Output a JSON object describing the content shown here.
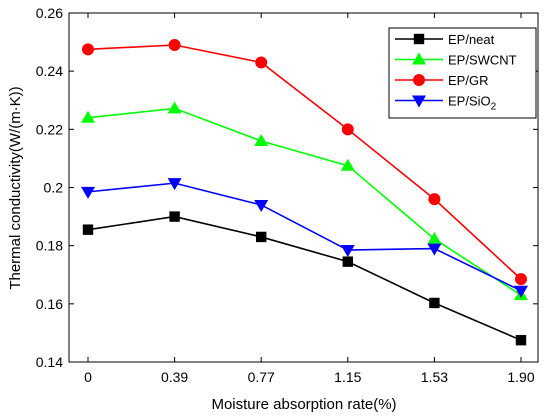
{
  "chart_data": {
    "type": "line",
    "title": "",
    "xlabel": "Moisture absorption rate(%)",
    "ylabel": "Thermal conductivity(W/(m·K))",
    "categories": [
      "0",
      "0.39",
      "0.77",
      "1.15",
      "1.53",
      "1.90"
    ],
    "ylim": [
      0.14,
      0.26
    ],
    "yticks": [
      "0.14",
      "0.16",
      "0.18",
      "0.2",
      "0.22",
      "0.24",
      "0.26"
    ],
    "grid": false,
    "legend_position": "top-right",
    "series": [
      {
        "name": "EP/neat",
        "sub": "",
        "marker": "square",
        "color": "#000000",
        "values": [
          0.1855,
          0.19,
          0.183,
          0.1745,
          0.1603,
          0.1475
        ]
      },
      {
        "name": "EP/SWCNT",
        "sub": "",
        "marker": "triangle-up",
        "color": "#00ff00",
        "values": [
          0.224,
          0.2272,
          0.216,
          0.2075,
          0.1823,
          0.163
        ]
      },
      {
        "name": "EP/GR",
        "sub": "",
        "marker": "circle",
        "color": "#ff0000",
        "values": [
          0.2475,
          0.249,
          0.243,
          0.22,
          0.196,
          0.1685
        ]
      },
      {
        "name": "EP/SiO",
        "sub": "2",
        "marker": "triangle-down",
        "color": "#0000ff",
        "values": [
          0.1985,
          0.2015,
          0.194,
          0.1785,
          0.179,
          0.1645
        ]
      }
    ]
  }
}
